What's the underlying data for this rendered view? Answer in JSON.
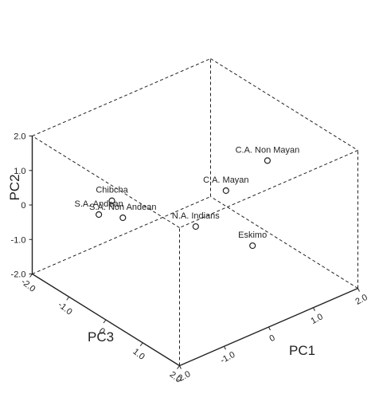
{
  "chart_data": {
    "type": "scatter3d",
    "title": "",
    "axes": {
      "x": {
        "label": "PC1",
        "ticks": [
          "-2.0",
          "-1.0",
          "0",
          "1.0",
          "2.0"
        ]
      },
      "y": {
        "label": "PC2",
        "ticks": [
          "-2.0",
          "-1.0",
          "0",
          "1.0",
          "2.0"
        ]
      },
      "z": {
        "label": "PC3",
        "ticks": [
          "-2.0",
          "-1.0",
          "0",
          "1.0",
          "2.0"
        ]
      }
    },
    "xlim": [
      -2,
      2
    ],
    "ylim": [
      -2,
      2
    ],
    "zlim": [
      -2,
      2
    ],
    "points": [
      {
        "name": "C.A. Non Mayan",
        "pc1": 0.55,
        "pc2": 2.05,
        "pc3": -1.3
      },
      {
        "name": "C.A. Mayan",
        "pc1": -0.05,
        "pc2": 1.25,
        "pc3": -0.9
      },
      {
        "name": "Chibcha",
        "pc1": -1.7,
        "pc2": 1.15,
        "pc3": 0.2
      },
      {
        "name": "N.A. Indians",
        "pc1": -0.15,
        "pc2": -0.2,
        "pc3": -0.2
      },
      {
        "name": "S.A. Non Andean",
        "pc1": -1.0,
        "pc2": -0.1,
        "pc3": 0.75
      },
      {
        "name": "S.A. Andean",
        "pc1": -1.25,
        "pc2": -0.1,
        "pc3": 1.1
      },
      {
        "name": "Eskimo",
        "pc1": 1.0,
        "pc2": -1.3,
        "pc3": -0.35
      }
    ]
  }
}
